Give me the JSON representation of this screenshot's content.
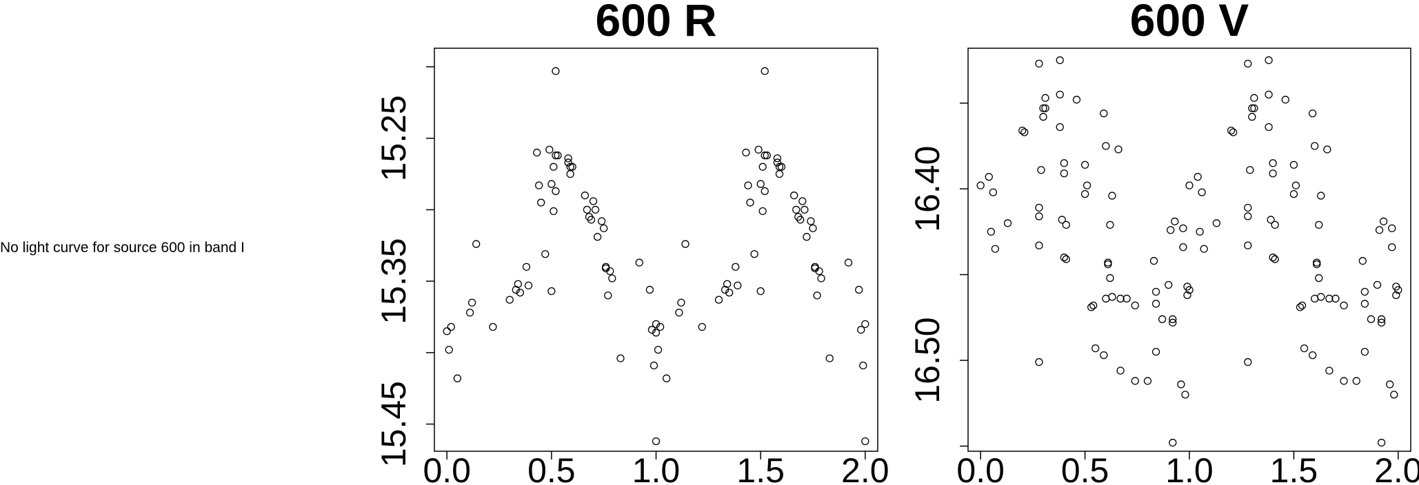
{
  "note": "No light curve for source 600 in band I",
  "chart_data": [
    {
      "type": "scatter",
      "title": "600 R",
      "xlabel": "",
      "ylabel": "",
      "xlim": [
        -0.06,
        2.06
      ],
      "ylim": [
        15.469,
        15.187
      ],
      "y_inverted": true,
      "x_ticks": [
        "0.0",
        "0.5",
        "1.0",
        "1.5",
        "2.0"
      ],
      "y_ticks": [
        "15.25",
        "15.35",
        "15.45"
      ],
      "points": [
        [
          0.0,
          15.385
        ],
        [
          0.01,
          15.398
        ],
        [
          0.02,
          15.382
        ],
        [
          0.05,
          15.418
        ],
        [
          0.11,
          15.372
        ],
        [
          0.12,
          15.365
        ],
        [
          0.14,
          15.324
        ],
        [
          0.22,
          15.382
        ],
        [
          0.3,
          15.363
        ],
        [
          0.33,
          15.356
        ],
        [
          0.34,
          15.352
        ],
        [
          0.35,
          15.358
        ],
        [
          0.38,
          15.34
        ],
        [
          0.39,
          15.353
        ],
        [
          0.43,
          15.26
        ],
        [
          0.44,
          15.283
        ],
        [
          0.45,
          15.295
        ],
        [
          0.47,
          15.331
        ],
        [
          0.49,
          15.258
        ],
        [
          0.5,
          15.282
        ],
        [
          0.5,
          15.357
        ],
        [
          0.51,
          15.301
        ],
        [
          0.51,
          15.27
        ],
        [
          0.52,
          15.262
        ],
        [
          0.52,
          15.287
        ],
        [
          0.53,
          15.262
        ],
        [
          0.52,
          15.203
        ],
        [
          0.58,
          15.264
        ],
        [
          0.58,
          15.267
        ],
        [
          0.59,
          15.27
        ],
        [
          0.59,
          15.275
        ],
        [
          0.6,
          15.27
        ],
        [
          0.66,
          15.29
        ],
        [
          0.67,
          15.3
        ],
        [
          0.68,
          15.305
        ],
        [
          0.69,
          15.307
        ],
        [
          0.7,
          15.294
        ],
        [
          0.71,
          15.3
        ],
        [
          0.72,
          15.319
        ],
        [
          0.74,
          15.308
        ],
        [
          0.75,
          15.313
        ],
        [
          0.76,
          15.34
        ],
        [
          0.76,
          15.341
        ],
        [
          0.77,
          15.36
        ],
        [
          0.78,
          15.343
        ],
        [
          0.79,
          15.348
        ],
        [
          0.83,
          15.404
        ],
        [
          0.92,
          15.337
        ],
        [
          0.97,
          15.356
        ],
        [
          0.98,
          15.384
        ],
        [
          0.99,
          15.409
        ],
        [
          1.0,
          15.38
        ],
        [
          1.0,
          15.386
        ],
        [
          1.01,
          15.398
        ],
        [
          1.02,
          15.382
        ],
        [
          1.05,
          15.418
        ],
        [
          1.11,
          15.372
        ],
        [
          1.12,
          15.365
        ],
        [
          1.14,
          15.324
        ],
        [
          1.22,
          15.382
        ],
        [
          1.3,
          15.363
        ],
        [
          1.33,
          15.356
        ],
        [
          1.34,
          15.352
        ],
        [
          1.35,
          15.358
        ],
        [
          1.38,
          15.34
        ],
        [
          1.39,
          15.353
        ],
        [
          1.43,
          15.26
        ],
        [
          1.44,
          15.283
        ],
        [
          1.45,
          15.295
        ],
        [
          1.47,
          15.331
        ],
        [
          1.49,
          15.258
        ],
        [
          1.5,
          15.282
        ],
        [
          1.5,
          15.357
        ],
        [
          1.51,
          15.301
        ],
        [
          1.51,
          15.27
        ],
        [
          1.52,
          15.262
        ],
        [
          1.52,
          15.287
        ],
        [
          1.53,
          15.262
        ],
        [
          1.52,
          15.203
        ],
        [
          1.58,
          15.264
        ],
        [
          1.58,
          15.267
        ],
        [
          1.59,
          15.27
        ],
        [
          1.59,
          15.275
        ],
        [
          1.6,
          15.27
        ],
        [
          1.66,
          15.29
        ],
        [
          1.67,
          15.3
        ],
        [
          1.68,
          15.305
        ],
        [
          1.69,
          15.307
        ],
        [
          1.7,
          15.294
        ],
        [
          1.71,
          15.3
        ],
        [
          1.72,
          15.319
        ],
        [
          1.74,
          15.308
        ],
        [
          1.75,
          15.313
        ],
        [
          1.76,
          15.34
        ],
        [
          1.76,
          15.341
        ],
        [
          1.77,
          15.36
        ],
        [
          1.78,
          15.343
        ],
        [
          1.79,
          15.348
        ],
        [
          1.83,
          15.404
        ],
        [
          1.92,
          15.337
        ],
        [
          1.97,
          15.356
        ],
        [
          1.98,
          15.384
        ],
        [
          1.99,
          15.409
        ],
        [
          2.0,
          15.38
        ],
        [
          2.0,
          15.462
        ],
        [
          1.0,
          15.462
        ]
      ]
    },
    {
      "type": "scatter",
      "title": "600 V",
      "xlabel": "",
      "ylabel": "",
      "xlim": [
        -0.06,
        2.06
      ],
      "ylim": [
        16.553,
        16.318
      ],
      "y_inverted": true,
      "x_ticks": [
        "0.0",
        "0.5",
        "1.0",
        "1.5",
        "2.0"
      ],
      "y_ticks": [
        "16.40",
        "16.50"
      ],
      "points": [
        [
          0.0,
          16.398
        ],
        [
          0.04,
          16.393
        ],
        [
          0.05,
          16.425
        ],
        [
          0.06,
          16.402
        ],
        [
          0.07,
          16.435
        ],
        [
          0.13,
          16.42
        ],
        [
          0.2,
          16.366
        ],
        [
          0.21,
          16.367
        ],
        [
          0.28,
          16.327
        ],
        [
          0.28,
          16.411
        ],
        [
          0.28,
          16.416
        ],
        [
          0.28,
          16.433
        ],
        [
          0.28,
          16.501
        ],
        [
          0.29,
          16.389
        ],
        [
          0.3,
          16.353
        ],
        [
          0.3,
          16.358
        ],
        [
          0.31,
          16.353
        ],
        [
          0.31,
          16.347
        ],
        [
          0.38,
          16.325
        ],
        [
          0.38,
          16.345
        ],
        [
          0.38,
          16.364
        ],
        [
          0.39,
          16.418
        ],
        [
          0.4,
          16.391
        ],
        [
          0.4,
          16.44
        ],
        [
          0.4,
          16.385
        ],
        [
          0.41,
          16.441
        ],
        [
          0.41,
          16.421
        ],
        [
          0.46,
          16.348
        ],
        [
          0.5,
          16.386
        ],
        [
          0.5,
          16.403
        ],
        [
          0.51,
          16.398
        ],
        [
          0.53,
          16.469
        ],
        [
          0.54,
          16.468
        ],
        [
          0.55,
          16.493
        ],
        [
          0.59,
          16.356
        ],
        [
          0.59,
          16.497
        ],
        [
          0.6,
          16.464
        ],
        [
          0.6,
          16.375
        ],
        [
          0.61,
          16.443
        ],
        [
          0.61,
          16.444
        ],
        [
          0.62,
          16.452
        ],
        [
          0.63,
          16.404
        ],
        [
          0.63,
          16.463
        ],
        [
          0.62,
          16.421
        ],
        [
          0.66,
          16.377
        ],
        [
          0.67,
          16.464
        ],
        [
          0.67,
          16.506
        ],
        [
          0.7,
          16.464
        ],
        [
          0.74,
          16.468
        ],
        [
          0.74,
          16.512
        ],
        [
          0.8,
          16.512
        ],
        [
          0.83,
          16.442
        ],
        [
          0.84,
          16.46
        ],
        [
          0.84,
          16.467
        ],
        [
          0.84,
          16.495
        ],
        [
          0.87,
          16.476
        ],
        [
          0.9,
          16.456
        ],
        [
          0.91,
          16.424
        ],
        [
          0.92,
          16.476
        ],
        [
          0.92,
          16.478
        ],
        [
          0.92,
          16.548
        ],
        [
          0.93,
          16.419
        ],
        [
          0.96,
          16.514
        ],
        [
          0.97,
          16.434
        ],
        [
          0.97,
          16.423
        ],
        [
          0.98,
          16.52
        ],
        [
          0.99,
          16.462
        ],
        [
          0.99,
          16.457
        ],
        [
          1.0,
          16.459
        ],
        [
          1.0,
          16.398
        ],
        [
          1.04,
          16.393
        ],
        [
          1.05,
          16.425
        ],
        [
          1.06,
          16.402
        ],
        [
          1.07,
          16.435
        ],
        [
          1.13,
          16.42
        ],
        [
          1.2,
          16.366
        ],
        [
          1.21,
          16.367
        ],
        [
          1.28,
          16.327
        ],
        [
          1.28,
          16.411
        ],
        [
          1.28,
          16.416
        ],
        [
          1.28,
          16.433
        ],
        [
          1.28,
          16.501
        ],
        [
          1.29,
          16.389
        ],
        [
          1.3,
          16.353
        ],
        [
          1.3,
          16.358
        ],
        [
          1.31,
          16.353
        ],
        [
          1.31,
          16.347
        ],
        [
          1.38,
          16.325
        ],
        [
          1.38,
          16.345
        ],
        [
          1.38,
          16.364
        ],
        [
          1.39,
          16.418
        ],
        [
          1.4,
          16.391
        ],
        [
          1.4,
          16.44
        ],
        [
          1.4,
          16.385
        ],
        [
          1.41,
          16.441
        ],
        [
          1.41,
          16.421
        ],
        [
          1.46,
          16.348
        ],
        [
          1.5,
          16.386
        ],
        [
          1.5,
          16.403
        ],
        [
          1.51,
          16.398
        ],
        [
          1.53,
          16.469
        ],
        [
          1.54,
          16.468
        ],
        [
          1.55,
          16.493
        ],
        [
          1.59,
          16.356
        ],
        [
          1.59,
          16.497
        ],
        [
          1.6,
          16.464
        ],
        [
          1.6,
          16.375
        ],
        [
          1.61,
          16.443
        ],
        [
          1.61,
          16.444
        ],
        [
          1.62,
          16.452
        ],
        [
          1.63,
          16.404
        ],
        [
          1.63,
          16.463
        ],
        [
          1.62,
          16.421
        ],
        [
          1.66,
          16.377
        ],
        [
          1.67,
          16.464
        ],
        [
          1.67,
          16.506
        ],
        [
          1.7,
          16.464
        ],
        [
          1.74,
          16.468
        ],
        [
          1.74,
          16.512
        ],
        [
          1.8,
          16.512
        ],
        [
          1.83,
          16.442
        ],
        [
          1.84,
          16.46
        ],
        [
          1.84,
          16.467
        ],
        [
          1.84,
          16.495
        ],
        [
          1.87,
          16.476
        ],
        [
          1.9,
          16.456
        ],
        [
          1.91,
          16.424
        ],
        [
          1.92,
          16.476
        ],
        [
          1.92,
          16.478
        ],
        [
          1.92,
          16.548
        ],
        [
          1.93,
          16.419
        ],
        [
          1.96,
          16.514
        ],
        [
          1.97,
          16.434
        ],
        [
          1.97,
          16.423
        ],
        [
          1.98,
          16.52
        ],
        [
          1.99,
          16.462
        ],
        [
          1.99,
          16.457
        ],
        [
          2.0,
          16.459
        ]
      ]
    }
  ]
}
